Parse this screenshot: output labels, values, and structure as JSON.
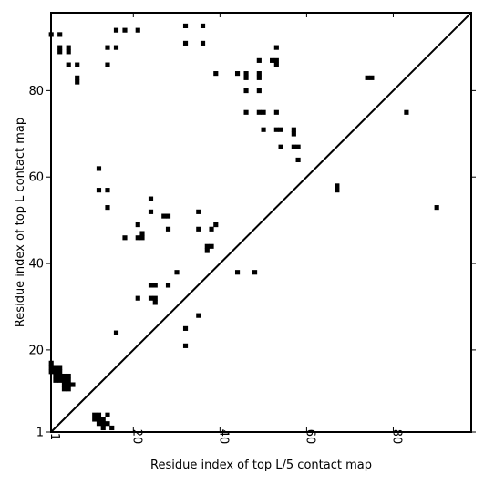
{
  "chart_data": {
    "type": "scatter",
    "title": "",
    "xlabel": "Residue index of top L/5 contact map",
    "ylabel": "Residue index of top L contact map",
    "xlim": [
      1,
      98
    ],
    "ylim": [
      1,
      98
    ],
    "xticks": [
      1,
      20,
      40,
      60,
      80
    ],
    "yticks": [
      1,
      20,
      40,
      60,
      80
    ],
    "diagonal": true,
    "marker": "square",
    "marker_color": "#000000",
    "points": [
      [
        1,
        93
      ],
      [
        3,
        93
      ],
      [
        3,
        90
      ],
      [
        3,
        89
      ],
      [
        5,
        90
      ],
      [
        5,
        89
      ],
      [
        5,
        86
      ],
      [
        7,
        86
      ],
      [
        7,
        83
      ],
      [
        7,
        82
      ],
      [
        14,
        90
      ],
      [
        14,
        86
      ],
      [
        16,
        94
      ],
      [
        16,
        90
      ],
      [
        18,
        94
      ],
      [
        21,
        94
      ],
      [
        32,
        95
      ],
      [
        36,
        95
      ],
      [
        32,
        91
      ],
      [
        36,
        91
      ],
      [
        39,
        84
      ],
      [
        44,
        84
      ],
      [
        46,
        84
      ],
      [
        46,
        83
      ],
      [
        49,
        84
      ],
      [
        49,
        83
      ],
      [
        49,
        87
      ],
      [
        52,
        87
      ],
      [
        53,
        87
      ],
      [
        53,
        86
      ],
      [
        53,
        90
      ],
      [
        46,
        80
      ],
      [
        49,
        80
      ],
      [
        46,
        75
      ],
      [
        49,
        75
      ],
      [
        50,
        75
      ],
      [
        53,
        75
      ],
      [
        50,
        71
      ],
      [
        53,
        71
      ],
      [
        54,
        71
      ],
      [
        57,
        71
      ],
      [
        57,
        70
      ],
      [
        54,
        67
      ],
      [
        57,
        67
      ],
      [
        58,
        67
      ],
      [
        58,
        64
      ],
      [
        74,
        83
      ],
      [
        75,
        83
      ],
      [
        83,
        75
      ],
      [
        67,
        58
      ],
      [
        67,
        57
      ],
      [
        90,
        53
      ],
      [
        12,
        62
      ],
      [
        12,
        57
      ],
      [
        14,
        57
      ],
      [
        14,
        53
      ],
      [
        24,
        55
      ],
      [
        24,
        52
      ],
      [
        21,
        49
      ],
      [
        18,
        46
      ],
      [
        21,
        46
      ],
      [
        22,
        46
      ],
      [
        22,
        47
      ],
      [
        27,
        51
      ],
      [
        28,
        51
      ],
      [
        28,
        48
      ],
      [
        35,
        52
      ],
      [
        35,
        48
      ],
      [
        38,
        48
      ],
      [
        39,
        49
      ],
      [
        37,
        44
      ],
      [
        38,
        44
      ],
      [
        37,
        43
      ],
      [
        44,
        38
      ],
      [
        48,
        38
      ],
      [
        30,
        38
      ],
      [
        24,
        35
      ],
      [
        25,
        35
      ],
      [
        28,
        35
      ],
      [
        21,
        32
      ],
      [
        24,
        32
      ],
      [
        25,
        32
      ],
      [
        25,
        31
      ],
      [
        35,
        28
      ],
      [
        32,
        25
      ],
      [
        32,
        21
      ],
      [
        16,
        24
      ],
      [
        1,
        17
      ],
      [
        1,
        16
      ],
      [
        1,
        15
      ],
      [
        2,
        16
      ],
      [
        2,
        15
      ],
      [
        3,
        16
      ],
      [
        3,
        15
      ],
      [
        3,
        14
      ],
      [
        2,
        14
      ],
      [
        2,
        13
      ],
      [
        3,
        13
      ],
      [
        4,
        14
      ],
      [
        4,
        13
      ],
      [
        5,
        14
      ],
      [
        5,
        13
      ],
      [
        4,
        12
      ],
      [
        5,
        12
      ],
      [
        6,
        12
      ],
      [
        4,
        11
      ],
      [
        5,
        11
      ],
      [
        11,
        5
      ],
      [
        12,
        5
      ],
      [
        11,
        4
      ],
      [
        12,
        4
      ],
      [
        13,
        4
      ],
      [
        12,
        3
      ],
      [
        13,
        3
      ],
      [
        14,
        5
      ],
      [
        14,
        3
      ],
      [
        13,
        2
      ],
      [
        15,
        2
      ]
    ]
  }
}
